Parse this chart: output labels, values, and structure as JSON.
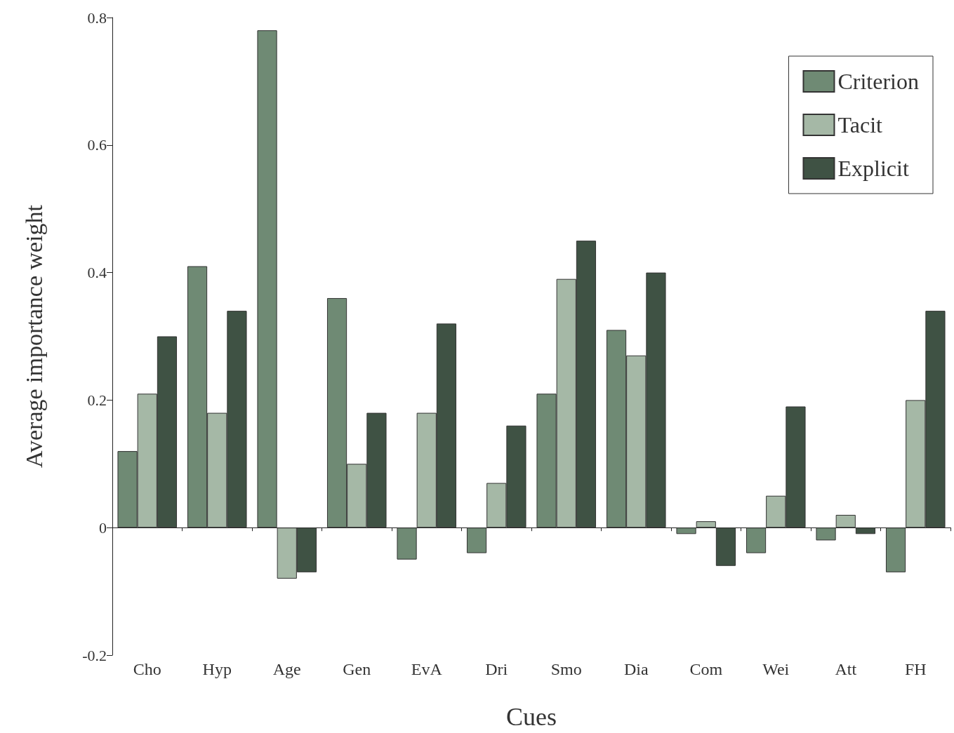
{
  "chart_data": {
    "type": "bar",
    "xlabel": "Cues",
    "ylabel": "Average importance weight",
    "categories": [
      "Cho",
      "Hyp",
      "Age",
      "Gen",
      "EvA",
      "Dri",
      "Smo",
      "Dia",
      "Com",
      "Wei",
      "Att",
      "FH"
    ],
    "series": [
      {
        "name": "Criterion",
        "color": "#6f8a74",
        "values": [
          0.12,
          0.41,
          0.78,
          0.36,
          -0.05,
          -0.04,
          0.21,
          0.31,
          -0.01,
          -0.04,
          -0.02,
          -0.07
        ]
      },
      {
        "name": "Tacit",
        "color": "#a5b8a6",
        "values": [
          0.21,
          0.18,
          -0.08,
          0.1,
          0.18,
          0.07,
          0.39,
          0.27,
          0.01,
          0.05,
          0.02,
          0.2
        ]
      },
      {
        "name": "Explicit",
        "color": "#3f5244",
        "values": [
          0.3,
          0.34,
          -0.07,
          0.18,
          0.32,
          0.16,
          0.45,
          0.4,
          -0.06,
          0.19,
          -0.01,
          0.34
        ]
      }
    ],
    "ylim": [
      -0.2,
      0.8
    ],
    "yticks": [
      -0.2,
      0,
      0.2,
      0.4,
      0.6,
      0.8
    ],
    "legend": "top right"
  }
}
